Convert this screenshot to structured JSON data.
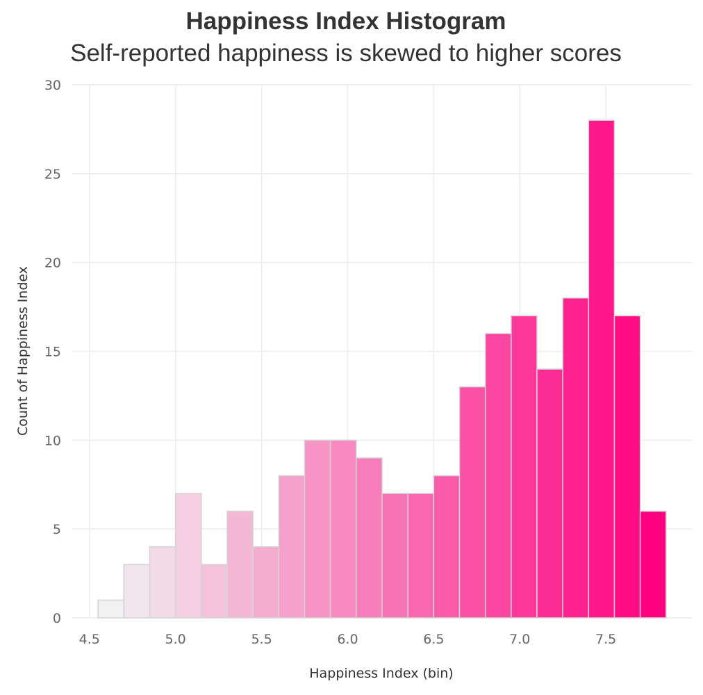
{
  "chart_data": {
    "type": "bar",
    "title": "Happiness Index Histogram",
    "subtitle": "Self-reported happiness is skewed to higher scores",
    "xlabel": "Happiness Index (bin)",
    "ylabel": "Count of Happiness Index",
    "bin_width": 0.15,
    "bins": [
      {
        "start": 4.55,
        "end": 4.7,
        "count": 1
      },
      {
        "start": 4.7,
        "end": 4.85,
        "count": 3
      },
      {
        "start": 4.85,
        "end": 5.0,
        "count": 4
      },
      {
        "start": 5.0,
        "end": 5.15,
        "count": 7
      },
      {
        "start": 5.15,
        "end": 5.3,
        "count": 3
      },
      {
        "start": 5.3,
        "end": 5.45,
        "count": 6
      },
      {
        "start": 5.45,
        "end": 5.6,
        "count": 4
      },
      {
        "start": 5.6,
        "end": 5.75,
        "count": 8
      },
      {
        "start": 5.75,
        "end": 5.9,
        "count": 10
      },
      {
        "start": 5.9,
        "end": 6.05,
        "count": 10
      },
      {
        "start": 6.05,
        "end": 6.2,
        "count": 9
      },
      {
        "start": 6.2,
        "end": 6.35,
        "count": 7
      },
      {
        "start": 6.35,
        "end": 6.5,
        "count": 7
      },
      {
        "start": 6.5,
        "end": 6.65,
        "count": 8
      },
      {
        "start": 6.65,
        "end": 6.8,
        "count": 13
      },
      {
        "start": 6.8,
        "end": 6.95,
        "count": 16
      },
      {
        "start": 6.95,
        "end": 7.1,
        "count": 17
      },
      {
        "start": 7.1,
        "end": 7.25,
        "count": 14
      },
      {
        "start": 7.25,
        "end": 7.4,
        "count": 18
      },
      {
        "start": 7.4,
        "end": 7.55,
        "count": 28
      },
      {
        "start": 7.55,
        "end": 7.7,
        "count": 17
      },
      {
        "start": 7.7,
        "end": 7.85,
        "count": 6
      }
    ],
    "xlim": [
      4.4,
      8.0
    ],
    "ylim": [
      0,
      30
    ],
    "x_ticks": [
      "4.5",
      "5.0",
      "5.5",
      "6.0",
      "6.5",
      "7.0",
      "7.5"
    ],
    "y_ticks": [
      "0",
      "5",
      "10",
      "15",
      "20",
      "25",
      "30"
    ],
    "grid": true,
    "color_scale": {
      "low": "#f1f1f1",
      "high": "#ff0080",
      "encodes": "bin"
    },
    "bar_border_color": "#d4d4d4",
    "gridline_color": "#ececec"
  }
}
